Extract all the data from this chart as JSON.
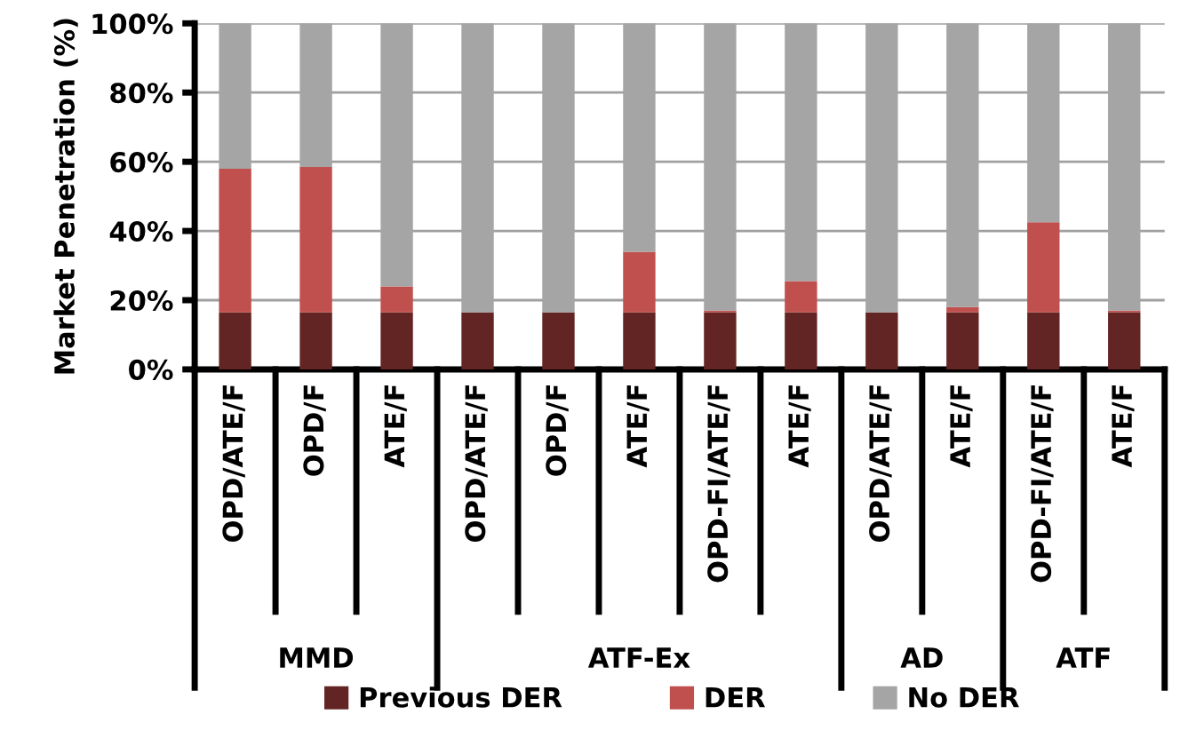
{
  "chart_data": {
    "type": "bar",
    "stacked": true,
    "ylabel": "Market Penetration (%)",
    "categories": [
      "OPD/ATE/F",
      "OPD/F",
      "ATE/F",
      "OPD/ATE/F",
      "OPD/F",
      "ATE/F",
      "OPD-FI/ATE/F",
      "ATE/F",
      "OPD/ATE/F",
      "ATE/F",
      "OPD-FI/ATE/F",
      "ATE/F"
    ],
    "series": [
      {
        "name": "Previous DER",
        "color": "#632523",
        "values": [
          16.5,
          16.5,
          16.5,
          16.5,
          16.5,
          16.5,
          16.5,
          16.5,
          16.5,
          16.5,
          16.5,
          16.5
        ]
      },
      {
        "name": "DER",
        "color": "#c0504d",
        "values": [
          41.5,
          42,
          7.5,
          0,
          0,
          17.5,
          0.5,
          9,
          0,
          1.5,
          26,
          0.5
        ]
      },
      {
        "name": "No DER",
        "color": "#a5a5a5",
        "values": [
          42,
          41.5,
          76,
          83.5,
          83.5,
          66,
          83,
          74.5,
          83.5,
          82,
          57.5,
          83
        ]
      }
    ],
    "ylim": [
      0,
      100
    ],
    "yticks": [
      {
        "value": 0,
        "label": "0%"
      },
      {
        "value": 20,
        "label": "20%"
      },
      {
        "value": 40,
        "label": "40%"
      },
      {
        "value": 60,
        "label": "60%"
      },
      {
        "value": 80,
        "label": "80%"
      },
      {
        "value": 100,
        "label": "100%"
      }
    ],
    "grid": "y",
    "legend": "bottom",
    "annotations": [
      "MMD",
      "ATF-Ex",
      "AD",
      "ATF"
    ]
  }
}
